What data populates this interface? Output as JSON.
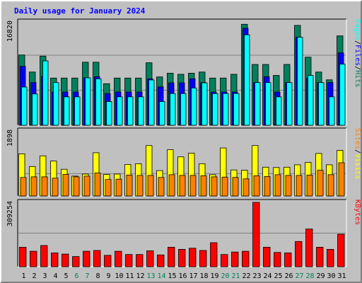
{
  "title": "Daily usage for January 2024",
  "chart_data": [
    {
      "type": "bar",
      "panel": "hits-files-pages",
      "categories": [
        "1",
        "2",
        "3",
        "4",
        "5",
        "6",
        "7",
        "8",
        "9",
        "10",
        "11",
        "12",
        "13",
        "14",
        "15",
        "16",
        "17",
        "18",
        "19",
        "20",
        "21",
        "22",
        "23",
        "24",
        "25",
        "26",
        "27",
        "28",
        "29",
        "30",
        "31"
      ],
      "weekend_days": [
        "6",
        "7",
        "13",
        "14",
        "20",
        "21",
        "27",
        "28"
      ],
      "ymax_label": "16820",
      "ylim": [
        0,
        16820
      ],
      "legend": [
        "Pages",
        "Files",
        "Hits"
      ],
      "series": [
        {
          "name": "Hits",
          "color": "#00805c",
          "values": [
            11440,
            8660,
            11260,
            7680,
            7680,
            7680,
            10260,
            10260,
            6760,
            7680,
            7680,
            7680,
            10170,
            7870,
            8480,
            8290,
            8480,
            8660,
            7680,
            7680,
            8290,
            16440,
            9900,
            9900,
            8110,
            9900,
            16260,
            11080,
            8660,
            7400,
            14550
          ]
        },
        {
          "name": "Files",
          "color": "#0000ff",
          "values": [
            9600,
            6950,
            7960,
            5410,
            5410,
            5410,
            7720,
            7900,
            5160,
            5410,
            5410,
            5410,
            7560,
            6240,
            6900,
            6900,
            7560,
            6950,
            5410,
            5410,
            5410,
            15800,
            6950,
            7900,
            5410,
            6950,
            14330,
            7680,
            6950,
            6950,
            11780
          ]
        },
        {
          "name": "Pages",
          "color": "#00ffff",
          "values": [
            6220,
            5090,
            10480,
            6950,
            4620,
            4620,
            7720,
            7560,
            3860,
            4620,
            4620,
            4620,
            7370,
            3860,
            5160,
            5160,
            6060,
            6900,
            5160,
            5160,
            5160,
            14720,
            6950,
            6950,
            4620,
            6950,
            14330,
            8110,
            6950,
            4620,
            9940
          ]
        }
      ]
    },
    {
      "type": "bar",
      "panel": "visits-sites",
      "categories": [
        "1",
        "2",
        "3",
        "4",
        "5",
        "6",
        "7",
        "8",
        "9",
        "10",
        "11",
        "12",
        "13",
        "14",
        "15",
        "16",
        "17",
        "18",
        "19",
        "20",
        "21",
        "22",
        "23",
        "24",
        "25",
        "26",
        "27",
        "28",
        "29",
        "30",
        "31"
      ],
      "ymax_label": "1898",
      "ylim": [
        0,
        1898
      ],
      "legend": [
        "Sites",
        "Visits"
      ],
      "series": [
        {
          "name": "Visits",
          "color": "#ffff00",
          "values": [
            1230,
            860,
            1170,
            1020,
            780,
            580,
            640,
            1260,
            630,
            640,
            920,
            940,
            1470,
            740,
            1350,
            1140,
            1250,
            940,
            620,
            1400,
            760,
            750,
            1470,
            840,
            830,
            840,
            910,
            980,
            1240,
            910,
            1330
          ]
        },
        {
          "name": "Sites",
          "color": "#ff8000",
          "values": [
            540,
            560,
            560,
            520,
            630,
            560,
            580,
            670,
            480,
            490,
            610,
            600,
            600,
            540,
            620,
            600,
            600,
            590,
            560,
            550,
            540,
            500,
            590,
            570,
            620,
            600,
            600,
            610,
            750,
            620,
            970
          ]
        }
      ]
    },
    {
      "type": "bar",
      "panel": "kbytes",
      "categories": [
        "1",
        "2",
        "3",
        "4",
        "5",
        "6",
        "7",
        "8",
        "9",
        "10",
        "11",
        "12",
        "13",
        "14",
        "15",
        "16",
        "17",
        "18",
        "19",
        "20",
        "21",
        "22",
        "23",
        "24",
        "25",
        "26",
        "27",
        "28",
        "29",
        "30",
        "31"
      ],
      "ymax_label": "309254",
      "ylim": [
        0,
        309254
      ],
      "legend": [
        "KBytes"
      ],
      "series": [
        {
          "name": "KBytes",
          "color": "#ff0000",
          "values": [
            93960,
            74400,
            101790,
            66590,
            60720,
            48980,
            74400,
            78310,
            54850,
            74400,
            58760,
            58760,
            76350,
            56800,
            93960,
            83550,
            89190,
            78310,
            115450,
            58760,
            70540,
            74400,
            309254,
            93960,
            68630,
            66590,
            121330,
            181300,
            93960,
            83550,
            156250
          ]
        }
      ]
    }
  ]
}
